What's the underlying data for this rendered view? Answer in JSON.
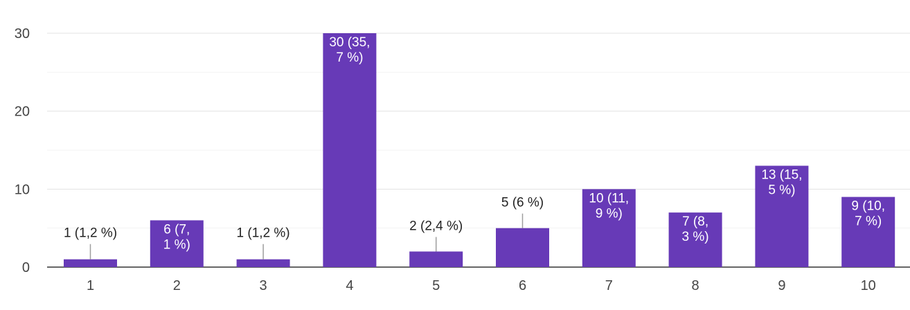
{
  "chart_data": {
    "type": "bar",
    "categories": [
      "1",
      "2",
      "3",
      "4",
      "5",
      "6",
      "7",
      "8",
      "9",
      "10"
    ],
    "values": [
      1,
      6,
      1,
      30,
      2,
      5,
      10,
      7,
      13,
      9
    ],
    "data_labels": [
      [
        "1 (1,2 %)"
      ],
      [
        "6 (7,",
        "1 %)"
      ],
      [
        "1 (1,2 %)"
      ],
      [
        "30 (35,",
        "7 %)"
      ],
      [
        "2 (2,4 %)"
      ],
      [
        "5 (6 %)"
      ],
      [
        "10 (11,",
        "9 %)"
      ],
      [
        "7 (8,",
        "3 %)"
      ],
      [
        "13 (15,",
        "5 %)"
      ],
      [
        "9 (10,",
        "7 %)"
      ]
    ],
    "yticks": [
      "0",
      "10",
      "20",
      "30"
    ],
    "ylim": [
      0,
      30
    ],
    "grid": true,
    "bar_color": "#673ab7",
    "title": "",
    "xlabel": "",
    "ylabel": ""
  }
}
